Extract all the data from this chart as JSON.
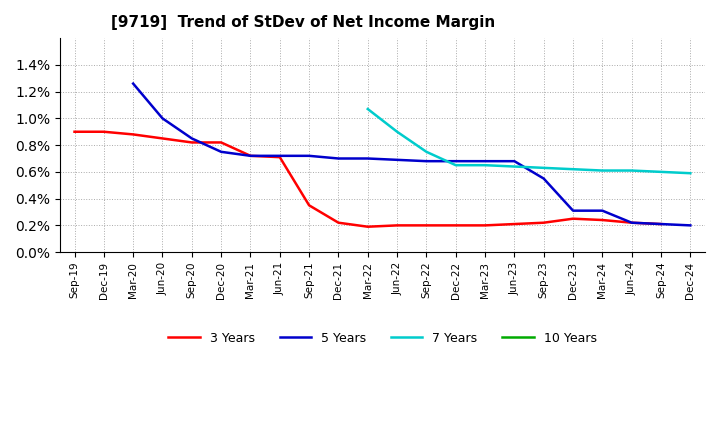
{
  "title": "[9719]  Trend of StDev of Net Income Margin",
  "x_labels": [
    "Sep-19",
    "Dec-19",
    "Mar-20",
    "Jun-20",
    "Sep-20",
    "Dec-20",
    "Mar-21",
    "Jun-21",
    "Sep-21",
    "Dec-21",
    "Mar-22",
    "Jun-22",
    "Sep-22",
    "Dec-22",
    "Mar-23",
    "Jun-23",
    "Sep-23",
    "Dec-23",
    "Mar-24",
    "Jun-24",
    "Sep-24",
    "Dec-24"
  ],
  "series_3y": [
    0.009,
    0.009,
    0.0088,
    0.0085,
    0.0082,
    0.0082,
    0.0072,
    0.0071,
    0.0035,
    0.0022,
    0.0019,
    0.002,
    0.002,
    0.002,
    0.002,
    0.0021,
    0.0022,
    0.0025,
    0.0024,
    0.0022,
    0.0021,
    null
  ],
  "series_5y": [
    null,
    null,
    0.0126,
    0.01,
    0.0085,
    0.0075,
    0.0072,
    0.0072,
    0.0072,
    0.007,
    0.007,
    0.0069,
    0.0068,
    0.0068,
    0.0068,
    0.0068,
    0.0055,
    0.0031,
    0.0031,
    0.0022,
    0.0021,
    0.002
  ],
  "series_7y": [
    null,
    null,
    null,
    null,
    null,
    null,
    null,
    null,
    null,
    null,
    0.0107,
    0.009,
    0.0075,
    0.0065,
    0.0065,
    0.0064,
    0.0063,
    0.0062,
    0.0061,
    0.0061,
    0.006,
    0.0059
  ],
  "series_10y": [
    null,
    null,
    null,
    null,
    null,
    null,
    null,
    null,
    null,
    null,
    null,
    null,
    null,
    null,
    null,
    null,
    null,
    null,
    null,
    null,
    null,
    null
  ],
  "color_3y": "#ff0000",
  "color_5y": "#0000cc",
  "color_7y": "#00cccc",
  "color_10y": "#00aa00",
  "ylim_max": 0.016,
  "ytick_max": 0.014,
  "background_color": "#ffffff",
  "grid_color": "#aaaaaa",
  "legend_labels": [
    "3 Years",
    "5 Years",
    "7 Years",
    "10 Years"
  ]
}
